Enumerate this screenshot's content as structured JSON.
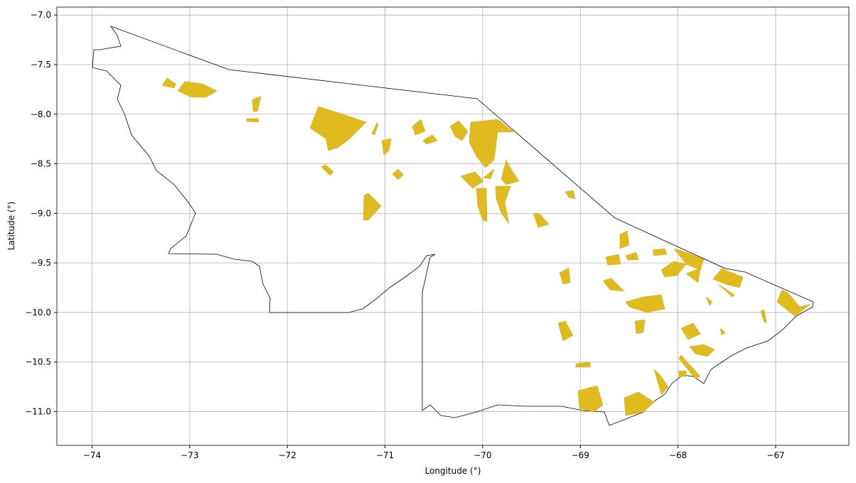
{
  "chart_data": {
    "type": "map",
    "x_label": "Longitude (°)",
    "y_label": "Latitude (°)",
    "xlim": [
      -74.36,
      -66.25
    ],
    "ylim": [
      -11.34,
      -6.92
    ],
    "xticks": [
      {
        "value": -74,
        "label": "−74"
      },
      {
        "value": -73,
        "label": "−73"
      },
      {
        "value": -72,
        "label": "−72"
      },
      {
        "value": -71,
        "label": "−71"
      },
      {
        "value": -70,
        "label": "−70"
      },
      {
        "value": -69,
        "label": "−69"
      },
      {
        "value": -68,
        "label": "−68"
      },
      {
        "value": -67,
        "label": "−67"
      }
    ],
    "yticks": [
      {
        "value": -7.0,
        "label": "−7.0"
      },
      {
        "value": -7.5,
        "label": "−7.5"
      },
      {
        "value": -8.0,
        "label": "−8.0"
      },
      {
        "value": -8.5,
        "label": "−8.5"
      },
      {
        "value": -9.0,
        "label": "−9.0"
      },
      {
        "value": -9.5,
        "label": "−9.5"
      },
      {
        "value": -10.0,
        "label": "−10.0"
      },
      {
        "value": -10.5,
        "label": "−10.5"
      },
      {
        "value": -11.0,
        "label": "−11.0"
      }
    ],
    "grid": true
  }
}
